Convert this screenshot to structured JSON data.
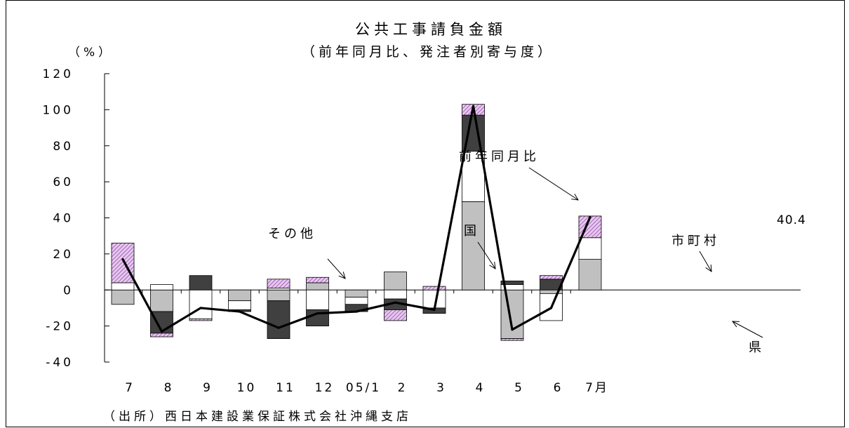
{
  "chart_data": {
    "type": "bar",
    "title": "公共工事請負金額",
    "subtitle": "（前年同月比、発注者別寄与度）",
    "ylabel": "（%）",
    "ylim": [
      -40,
      120
    ],
    "yticks": [
      -40,
      -20,
      0,
      20,
      40,
      60,
      80,
      100,
      120
    ],
    "ytick_labels": [
      "-40",
      "-20",
      "0",
      "20",
      "40",
      "60",
      "80",
      "100",
      "120"
    ],
    "categories": [
      "7",
      "8",
      "9",
      "10",
      "11",
      "12",
      "05/1",
      "2",
      "3",
      "4",
      "5",
      "6",
      "7月"
    ],
    "stacked": true,
    "grid": false,
    "series": [
      {
        "name": "国",
        "kind": "bar",
        "color": "#c0c0c0",
        "values": [
          -8,
          -12,
          0,
          -6,
          -6,
          4,
          -4,
          10,
          0,
          49,
          -27,
          -2,
          17
        ]
      },
      {
        "name": "県",
        "kind": "bar",
        "color": "#ffffff",
        "values": [
          4,
          3,
          -16,
          -5,
          1,
          -11,
          -4,
          -5,
          -10,
          28,
          3,
          -15,
          12
        ]
      },
      {
        "name": "市町村",
        "kind": "bar",
        "color": "#404040",
        "values": [
          0,
          -12,
          8,
          -1,
          -21,
          -9,
          -4,
          -6,
          -3,
          20,
          2,
          6,
          0
        ]
      },
      {
        "name": "その他",
        "kind": "bar",
        "color": "#e0c0e8",
        "values": [
          22,
          -2,
          -1,
          0,
          5,
          3,
          0,
          -6,
          2,
          6,
          -1,
          2,
          12
        ]
      },
      {
        "name": "前年同月比",
        "kind": "line",
        "color": "#000000",
        "values": [
          17,
          -23,
          -10,
          -12,
          -21,
          -13,
          -12,
          -7,
          -11,
          102,
          -22,
          -10,
          40.4
        ]
      }
    ],
    "annotations": [
      {
        "text": "前年同月比",
        "series": "前年同月比",
        "category": "3"
      },
      {
        "text": "その他",
        "series": "その他",
        "category": "11"
      },
      {
        "text": "国",
        "series": "国",
        "category": "2"
      },
      {
        "text": "市町村",
        "series": "市町村",
        "category": "6"
      },
      {
        "text": "県",
        "series": "県",
        "category": "6"
      },
      {
        "text": "40.4",
        "series": "前年同月比",
        "category": "7月"
      }
    ],
    "source": "（出所）西日本建設業保証株式会社沖縄支店"
  }
}
